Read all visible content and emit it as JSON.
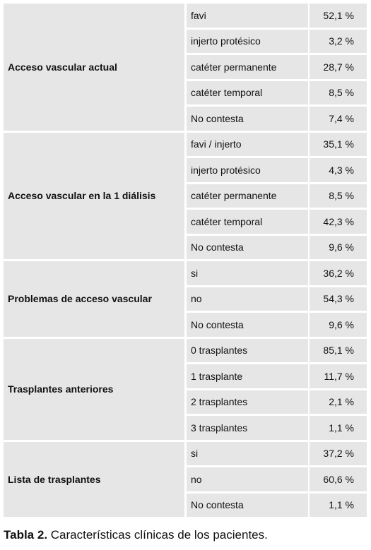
{
  "groups": [
    {
      "label": "Acceso vascular actual",
      "rows": [
        {
          "option": "favi",
          "value": "52,1 %"
        },
        {
          "option": "injerto protésico",
          "value": "3,2 %"
        },
        {
          "option": "catéter permanente",
          "value": "28,7 %"
        },
        {
          "option": "catéter temporal",
          "value": "8,5 %"
        },
        {
          "option": "No contesta",
          "value": "7,4 %"
        }
      ]
    },
    {
      "label": "Acceso vascular en la 1  diálisis",
      "rows": [
        {
          "option": "favi   / injerto",
          "value": "35,1 %"
        },
        {
          "option": "injerto protésico",
          "value": "4,3 %"
        },
        {
          "option": "catéter permanente",
          "value": "8,5 %"
        },
        {
          "option": "catéter temporal",
          "value": "42,3 %"
        },
        {
          "option": "No contesta",
          "value": "9,6 %"
        }
      ]
    },
    {
      "label": "Problemas de acceso vascular",
      "rows": [
        {
          "option": "si",
          "value": "36,2 %"
        },
        {
          "option": "no",
          "value": "54,3 %"
        },
        {
          "option": "No contesta",
          "value": "9,6 %"
        }
      ]
    },
    {
      "label": "Trasplantes anteriores",
      "rows": [
        {
          "option": "0 trasplantes",
          "value": "85,1 %"
        },
        {
          "option": "1 trasplante",
          "value": "11,7 %"
        },
        {
          "option": "2 trasplantes",
          "value": "2,1 %"
        },
        {
          "option": "3 trasplantes",
          "value": "1,1 %"
        }
      ]
    },
    {
      "label": "Lista de trasplantes",
      "rows": [
        {
          "option": "si",
          "value": "37,2 %"
        },
        {
          "option": "no",
          "value": "60,6 %"
        },
        {
          "option": "No contesta",
          "value": "1,1 %"
        }
      ]
    }
  ],
  "caption": {
    "label": "Tabla 2.",
    "text": " Características clínicas de los pacientes."
  }
}
